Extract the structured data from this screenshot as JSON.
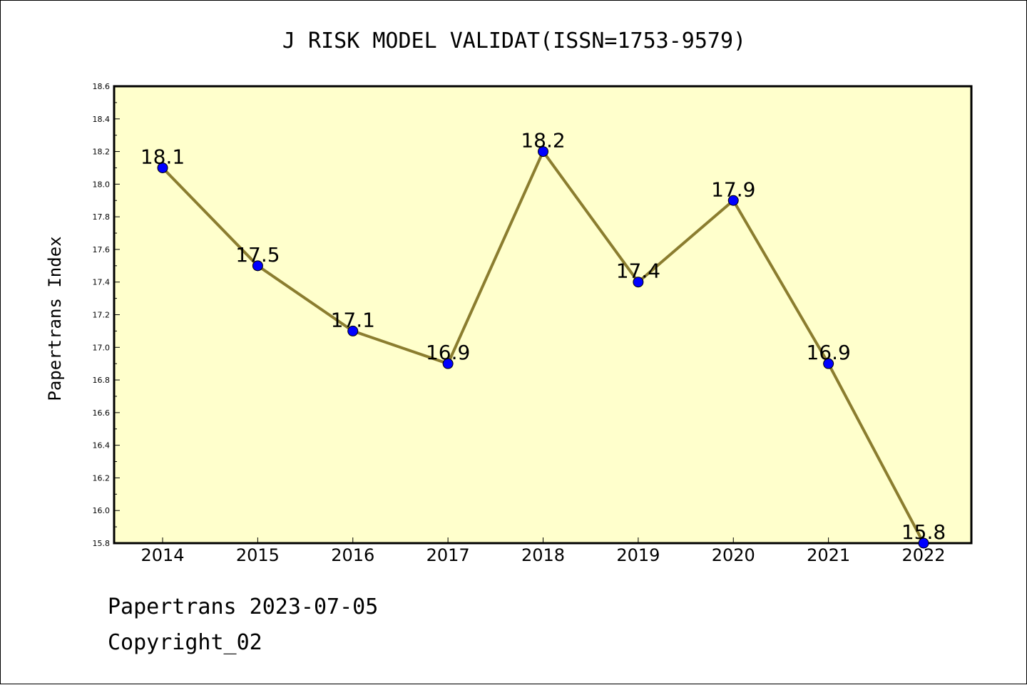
{
  "chart_data": {
    "type": "line",
    "title": "J RISK MODEL VALIDAT(ISSN=1753-9579)",
    "xlabel": "",
    "ylabel": "Papertrans Index",
    "categories": [
      "2014",
      "2015",
      "2016",
      "2017",
      "2018",
      "2019",
      "2020",
      "2021",
      "2022"
    ],
    "series": [
      {
        "values": [
          18.1,
          17.5,
          17.1,
          16.9,
          18.2,
          17.4,
          17.9,
          16.9,
          15.8
        ],
        "data_labels": [
          "18.1",
          "17.5",
          "17.1",
          "16.9",
          "18.2",
          "17.4",
          "17.9",
          "16.9",
          "15.8"
        ]
      }
    ],
    "ylim": [
      15.8,
      18.6
    ],
    "yticks": [
      "15.8",
      "16.0",
      "16.2",
      "16.4",
      "16.6",
      "16.8",
      "17.0",
      "17.2",
      "17.4",
      "17.6",
      "17.8",
      "18.0",
      "18.2",
      "18.4",
      "18.6"
    ],
    "grid": false,
    "legend": "none"
  },
  "colors": {
    "plot_background": "#ffffcc",
    "line": "#8b7d2f",
    "marker": "#0000ff",
    "axes": "#000000"
  },
  "footer": {
    "line1": "Papertrans 2023-07-05",
    "line2": "Copyright_02"
  }
}
